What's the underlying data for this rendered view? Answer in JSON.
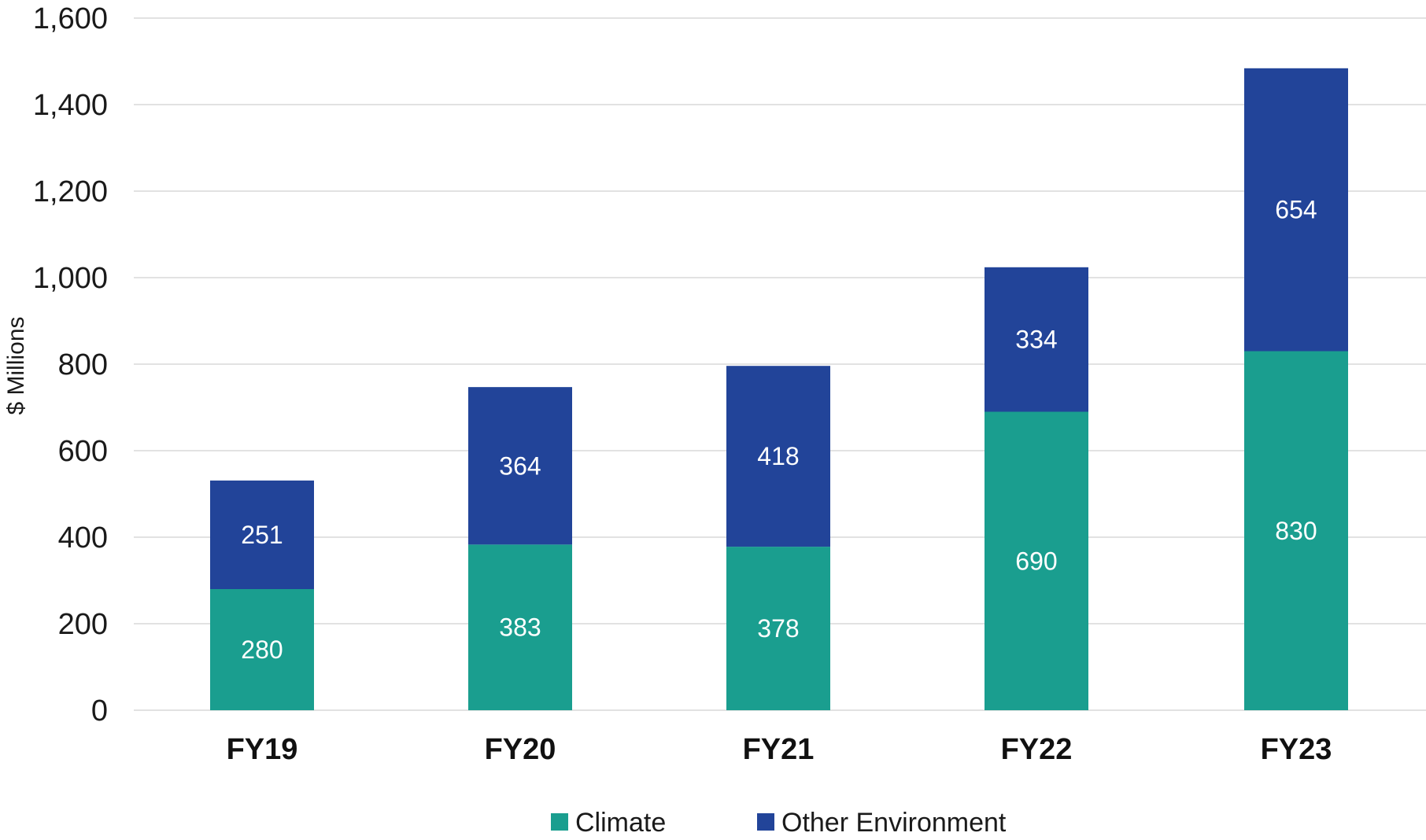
{
  "chart_data": {
    "type": "bar",
    "stacked": true,
    "categories": [
      "FY19",
      "FY20",
      "FY21",
      "FY22",
      "FY23"
    ],
    "series": [
      {
        "name": "Climate",
        "values": [
          280,
          383,
          378,
          690,
          830
        ],
        "color": "#1a9e8f"
      },
      {
        "name": "Other Environment",
        "values": [
          251,
          364,
          418,
          334,
          654
        ],
        "color": "#224499"
      }
    ],
    "ylabel": "$ Millions",
    "xlabel": "",
    "ylim": [
      0,
      1600
    ],
    "yticks": [
      0,
      200,
      400,
      600,
      800,
      1000,
      1200,
      1400,
      1600
    ],
    "ytick_labels": [
      "0",
      "200",
      "400",
      "600",
      "800",
      "1,000",
      "1,200",
      "1,400",
      "1,600"
    ],
    "grid": true,
    "legend_position": "bottom-center"
  }
}
